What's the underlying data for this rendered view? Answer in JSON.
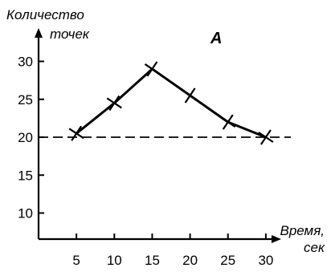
{
  "chart_data": {
    "type": "line",
    "title": "A",
    "ylabel_line1": "Количество",
    "ylabel_line2": "точек",
    "xlabel_line1": "Время,",
    "xlabel_line2": "сек",
    "x": [
      5,
      10,
      15,
      20,
      25,
      30
    ],
    "x_tick_labels": [
      "5",
      "10",
      "15",
      "20",
      "25",
      "30"
    ],
    "y_ticks": [
      10,
      15,
      20,
      25,
      30
    ],
    "y_tick_labels": [
      "10",
      "15",
      "20",
      "25",
      "30"
    ],
    "xlim": [
      0,
      35
    ],
    "ylim": [
      5,
      33
    ],
    "series": [
      {
        "values": [
          20.5,
          24.5,
          29,
          25.5,
          22,
          20
        ]
      }
    ],
    "reference_line": {
      "y": 20,
      "style": "dashed"
    },
    "marker": "cross",
    "grid": false
  }
}
